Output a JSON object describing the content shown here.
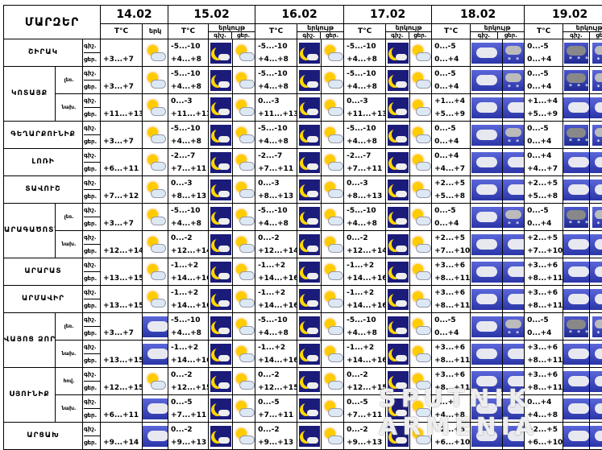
{
  "header": {
    "title": "ՄԱՐԶԵՐ"
  },
  "dates": [
    "14.02",
    "15.02",
    "16.02",
    "17.02",
    "18.02",
    "19.02"
  ],
  "temp_label": "T°C",
  "period_label": "երկ",
  "period_label_full": "երկույթ",
  "day_label": "ցեր.",
  "night_label": "գիշ.",
  "dn_labels": {
    "night": "գիշ.",
    "day": "ցեր."
  },
  "rows": [
    {
      "region": "ՇԻՐԱԿ",
      "sub": "",
      "t14": "+3...+7",
      "t15": [
        "-5...-10",
        "+4...+8"
      ],
      "t16": [
        "-5...-10",
        "+4...+8"
      ],
      "t17": [
        "-5...-10",
        "+4...+8"
      ],
      "t18": [
        "0...-5",
        "0...+4"
      ],
      "t19": [
        "0...-5",
        "0...+4"
      ]
    },
    {
      "region": "ԿՈՏԱՅՔ",
      "sub": "լեռ.",
      "t14": "+3...+7",
      "t15": [
        "-5...-10",
        "+4...+8"
      ],
      "t16": [
        "-5...-10",
        "+4...+8"
      ],
      "t17": [
        "-5...-10",
        "+4...+8"
      ],
      "t18": [
        "0...-5",
        "0...+4"
      ],
      "t19": [
        "0...-5",
        "0...+4"
      ]
    },
    {
      "region": "",
      "sub": "նախ.",
      "t14": "+11...+13",
      "t15": [
        "0...-3",
        "+11...+13"
      ],
      "t16": [
        "0...-3",
        "+11...+13"
      ],
      "t17": [
        "0...-3",
        "+11...+13"
      ],
      "t18": [
        "+1...+4",
        "+5...+9"
      ],
      "t19": [
        "+1...+4",
        "+5...+9"
      ]
    },
    {
      "region": "ԳԵՂԱՐՔՈՒՆԻՔ",
      "sub": "",
      "t14": "+3...+7",
      "t15": [
        "-5...-10",
        "+4...+8"
      ],
      "t16": [
        "-5...-10",
        "+4...+8"
      ],
      "t17": [
        "-5...-10",
        "+4...+8"
      ],
      "t18": [
        "0...-5",
        "0...+4"
      ],
      "t19": [
        "0...-5",
        "0...+4"
      ]
    },
    {
      "region": "ԼՈՌԻ",
      "sub": "",
      "t14": "+6...+11",
      "t15": [
        "-2...-7",
        "+7...+11"
      ],
      "t16": [
        "-2...-7",
        "+7...+11"
      ],
      "t17": [
        "-2...-7",
        "+7...+11"
      ],
      "t18": [
        "0...+4",
        "+4...+7"
      ],
      "t19": [
        "0...+4",
        "+4...+7"
      ]
    },
    {
      "region": "ՏԱՎՈՒՇ",
      "sub": "",
      "t14": "+7...+12",
      "t15": [
        "0...-3",
        "+8...+13"
      ],
      "t16": [
        "0...-3",
        "+8...+13"
      ],
      "t17": [
        "0...-3",
        "+8...+13"
      ],
      "t18": [
        "+2...+5",
        "+5...+8"
      ],
      "t19": [
        "+2...+5",
        "+5...+8"
      ]
    },
    {
      "region": "ԱՐԱԳԱԾՈՏՆ",
      "sub": "լեռ.",
      "t14": "+3...+7",
      "t15": [
        "-5...-10",
        "+4...+8"
      ],
      "t16": [
        "-5...-10",
        "+4...+8"
      ],
      "t17": [
        "-5...-10",
        "+4...+8"
      ],
      "t18": [
        "0...-5",
        "0...+4"
      ],
      "t19": [
        "0...-5",
        "0...+4"
      ]
    },
    {
      "region": "",
      "sub": "նախ.",
      "t14": "+12...+14",
      "t15": [
        "0...-2",
        "+12...+14"
      ],
      "t16": [
        "0...-2",
        "+12...+14"
      ],
      "t17": [
        "0...-2",
        "+12...+14"
      ],
      "t18": [
        "+2...+5",
        "+7...+10"
      ],
      "t19": [
        "+2...+5",
        "+7...+10"
      ]
    },
    {
      "region": "ԱՐԱՐԱՏ",
      "sub": "",
      "t14": "+13...+15",
      "t15": [
        "-1...+2",
        "+14...+16"
      ],
      "t16": [
        "-1...+2",
        "+14...+16"
      ],
      "t17": [
        "-1...+2",
        "+14...+16"
      ],
      "t18": [
        "+3...+6",
        "+8...+11"
      ],
      "t19": [
        "+3...+6",
        "+8...+11"
      ]
    },
    {
      "region": "ԱՐՄԱՎԻՐ",
      "sub": "",
      "t14": "+13...+15",
      "t15": [
        "-1...+2",
        "+14...+16"
      ],
      "t16": [
        "-1...+2",
        "+14...+16"
      ],
      "t17": [
        "-1...+2",
        "+14...+16"
      ],
      "t18": [
        "+3...+6",
        "+8...+11"
      ],
      "t19": [
        "+3...+6",
        "+8...+11"
      ]
    },
    {
      "region": "ՎԱՅՈՑ ՁՈՐ",
      "sub": "լեռ.",
      "t14": "+3...+7",
      "t15": [
        "-5...-10",
        "+4...+8"
      ],
      "t16": [
        "-5...-10",
        "+4...+8"
      ],
      "t17": [
        "-5...-10",
        "+4...+8"
      ],
      "t18": [
        "0...-5",
        "0...+4"
      ],
      "t19": [
        "0...-5",
        "0...+4"
      ]
    },
    {
      "region": "",
      "sub": "նախ.",
      "t14": "+13...+15",
      "t15": [
        "-1...+2",
        "+14...+16"
      ],
      "t16": [
        "-1...+2",
        "+14...+16"
      ],
      "t17": [
        "-1...+2",
        "+14...+16"
      ],
      "t18": [
        "+3...+6",
        "+8...+11"
      ],
      "t19": [
        "+3...+6",
        "+8...+11"
      ]
    },
    {
      "region": "ՍՅՈՒՆԻՔ",
      "sub": "հով.",
      "t14": "+12...+15",
      "t15": [
        "0...-2",
        "+12...+15"
      ],
      "t16": [
        "0...-2",
        "+12...+15"
      ],
      "t17": [
        "0...-2",
        "+12...+15"
      ],
      "t18": [
        "+3...+6",
        "+8...+11"
      ],
      "t19": [
        "+3...+6",
        "+8...+11"
      ]
    },
    {
      "region": "",
      "sub": "նախ.",
      "t14": "+6...+11",
      "t15": [
        "0...-5",
        "+7...+11"
      ],
      "t16": [
        "0...-5",
        "+7...+11"
      ],
      "t17": [
        "0...-5",
        "+7...+11"
      ],
      "t18": [
        "0...+4",
        "+4...+8"
      ],
      "t19": [
        "0...+4",
        "+4...+8"
      ]
    },
    {
      "region": "ԱՐՑԱԽ",
      "sub": "",
      "t14": "+9...+14",
      "t15": [
        "0...-2",
        "+9...+13"
      ],
      "t16": [
        "0...-2",
        "+9...+13"
      ],
      "t17": [
        "0...-2",
        "+9...+13"
      ],
      "t18": [
        "+2...+5",
        "+6...+10"
      ],
      "t19": [
        "+2...+5",
        "+6...+10"
      ]
    }
  ],
  "watermark": "SPUTNIK ARMENIA"
}
